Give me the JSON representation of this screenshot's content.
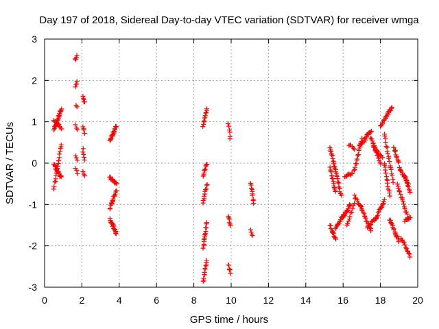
{
  "chart_data": {
    "type": "scatter",
    "title": "Day 197 of 2018, Sidereal Day-to-day VTEC variation (SDTVAR) for receiver wmga",
    "xlabel": "GPS time / hours",
    "ylabel": "SDTVAR / TECUs",
    "xlim": [
      0,
      20
    ],
    "ylim": [
      -3,
      3
    ],
    "xticks": [
      "0",
      "2",
      "4",
      "6",
      "8",
      "10",
      "12",
      "14",
      "16",
      "18",
      "20"
    ],
    "yticks": [
      "-3",
      "-2",
      "-1",
      "0",
      "1",
      "2",
      "3"
    ],
    "grid": true,
    "marker": "+",
    "color": "#ff0000",
    "segments": [
      {
        "x0": 0.5,
        "x1": 0.9,
        "y0": 0.8,
        "y1": 1.3,
        "n": 26
      },
      {
        "x0": 0.5,
        "x1": 0.9,
        "y0": 1.05,
        "y1": 0.85,
        "n": 10
      },
      {
        "x0": 0.5,
        "x1": 0.9,
        "y0": -0.05,
        "y1": -0.35,
        "n": 20
      },
      {
        "x0": 0.5,
        "x1": 0.9,
        "y0": -0.6,
        "y1": 0.45,
        "n": 18
      },
      {
        "x0": 1.65,
        "x1": 1.75,
        "y0": 2.5,
        "y1": 2.6,
        "n": 4
      },
      {
        "x0": 1.65,
        "x1": 1.75,
        "y0": 1.85,
        "y1": 1.95,
        "n": 4
      },
      {
        "x0": 1.68,
        "x1": 1.72,
        "y0": 1.4,
        "y1": 1.35,
        "n": 2
      },
      {
        "x0": 1.65,
        "x1": 1.75,
        "y0": 0.9,
        "y1": 0.8,
        "n": 3
      },
      {
        "x0": 1.65,
        "x1": 1.75,
        "y0": 0.15,
        "y1": 0.05,
        "n": 3
      },
      {
        "x0": 1.65,
        "x1": 1.75,
        "y0": -0.1,
        "y1": -0.25,
        "n": 3
      },
      {
        "x0": 2.05,
        "x1": 2.15,
        "y0": 1.6,
        "y1": 1.45,
        "n": 5
      },
      {
        "x0": 2.05,
        "x1": 2.15,
        "y0": 0.9,
        "y1": 0.75,
        "n": 4
      },
      {
        "x0": 2.05,
        "x1": 2.15,
        "y0": 0.35,
        "y1": 0.05,
        "n": 5
      },
      {
        "x0": 2.05,
        "x1": 2.15,
        "y0": -0.2,
        "y1": -0.3,
        "n": 3
      },
      {
        "x0": 3.5,
        "x1": 3.85,
        "y0": 0.55,
        "y1": 0.9,
        "n": 20
      },
      {
        "x0": 3.5,
        "x1": 3.85,
        "y0": -0.35,
        "y1": -0.5,
        "n": 14
      },
      {
        "x0": 3.5,
        "x1": 3.85,
        "y0": -1.1,
        "y1": -0.65,
        "n": 16
      },
      {
        "x0": 3.5,
        "x1": 3.85,
        "y0": -1.35,
        "y1": -1.7,
        "n": 20
      },
      {
        "x0": 8.5,
        "x1": 8.7,
        "y0": 0.9,
        "y1": 1.3,
        "n": 12
      },
      {
        "x0": 8.5,
        "x1": 8.7,
        "y0": -0.3,
        "y1": 0.0,
        "n": 10
      },
      {
        "x0": 8.5,
        "x1": 8.7,
        "y0": -0.95,
        "y1": -0.5,
        "n": 10
      },
      {
        "x0": 8.5,
        "x1": 8.7,
        "y0": -2.05,
        "y1": -1.45,
        "n": 14
      },
      {
        "x0": 8.5,
        "x1": 8.7,
        "y0": -2.85,
        "y1": -2.35,
        "n": 12
      },
      {
        "x0": 9.85,
        "x1": 9.95,
        "y0": 0.95,
        "y1": 0.6,
        "n": 6
      },
      {
        "x0": 9.85,
        "x1": 9.95,
        "y0": -1.3,
        "y1": -1.5,
        "n": 6
      },
      {
        "x0": 9.85,
        "x1": 9.95,
        "y0": -2.45,
        "y1": -2.65,
        "n": 6
      },
      {
        "x0": 11.05,
        "x1": 11.2,
        "y0": -0.5,
        "y1": -0.95,
        "n": 10
      },
      {
        "x0": 11.05,
        "x1": 11.15,
        "y0": -1.6,
        "y1": -1.75,
        "n": 4
      },
      {
        "x0": 15.3,
        "x1": 15.9,
        "y0": 0.4,
        "y1": -0.8,
        "n": 30
      },
      {
        "x0": 15.3,
        "x1": 15.6,
        "y0": -0.1,
        "y1": -0.7,
        "n": 15
      },
      {
        "x0": 15.3,
        "x1": 15.6,
        "y0": -1.5,
        "y1": -1.85,
        "n": 12
      },
      {
        "x0": 15.6,
        "x1": 16.0,
        "y0": -1.6,
        "y1": -1.25,
        "n": 14
      },
      {
        "x0": 16.0,
        "x1": 16.4,
        "y0": -1.3,
        "y1": -1.0,
        "n": 14
      },
      {
        "x0": 16.1,
        "x1": 16.5,
        "y0": -0.3,
        "y1": -0.25,
        "n": 10
      },
      {
        "x0": 16.2,
        "x1": 16.6,
        "y0": -1.5,
        "y1": -1.0,
        "n": 10
      },
      {
        "x0": 16.3,
        "x1": 16.6,
        "y0": 0.45,
        "y1": 0.35,
        "n": 6
      },
      {
        "x0": 16.6,
        "x1": 17.0,
        "y0": -0.2,
        "y1": 0.6,
        "n": 16
      },
      {
        "x0": 16.6,
        "x1": 17.0,
        "y0": -0.8,
        "y1": -1.1,
        "n": 10
      },
      {
        "x0": 16.9,
        "x1": 17.5,
        "y0": 0.4,
        "y1": 0.8,
        "n": 18
      },
      {
        "x0": 16.9,
        "x1": 17.5,
        "y0": -1.0,
        "y1": -1.65,
        "n": 18
      },
      {
        "x0": 17.3,
        "x1": 17.8,
        "y0": -1.55,
        "y1": -1.3,
        "n": 14
      },
      {
        "x0": 17.5,
        "x1": 18.0,
        "y0": 0.6,
        "y1": 0.0,
        "n": 18
      },
      {
        "x0": 17.6,
        "x1": 18.1,
        "y0": 0.4,
        "y1": 0.15,
        "n": 14
      },
      {
        "x0": 17.8,
        "x1": 18.2,
        "y0": -1.3,
        "y1": -0.9,
        "n": 14
      },
      {
        "x0": 18.0,
        "x1": 18.6,
        "y0": 0.9,
        "y1": 1.35,
        "n": 20
      },
      {
        "x0": 18.2,
        "x1": 18.5,
        "y0": 0.0,
        "y1": -0.8,
        "n": 14
      },
      {
        "x0": 18.2,
        "x1": 18.7,
        "y0": 0.7,
        "y1": -0.45,
        "n": 18
      },
      {
        "x0": 18.5,
        "x1": 19.0,
        "y0": -1.35,
        "y1": -1.9,
        "n": 18
      },
      {
        "x0": 18.7,
        "x1": 19.0,
        "y0": 0.4,
        "y1": 0.0,
        "n": 12
      },
      {
        "x0": 18.9,
        "x1": 19.5,
        "y0": -0.5,
        "y1": -1.35,
        "n": 18
      },
      {
        "x0": 19.0,
        "x1": 19.5,
        "y0": -0.1,
        "y1": -0.5,
        "n": 14
      },
      {
        "x0": 19.1,
        "x1": 19.6,
        "y0": -1.8,
        "y1": -2.25,
        "n": 14
      },
      {
        "x0": 19.3,
        "x1": 19.6,
        "y0": -0.3,
        "y1": -0.7,
        "n": 10
      },
      {
        "x0": 19.3,
        "x1": 19.6,
        "y0": -1.4,
        "y1": -1.3,
        "n": 8
      }
    ]
  }
}
